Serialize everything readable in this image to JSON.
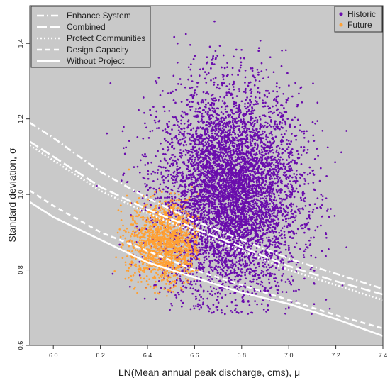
{
  "chart_data": {
    "type": "scatter",
    "xlabel": "LN(Mean annual peak discharge, cms), μ",
    "ylabel": "Standard deviation, σ",
    "xlim": [
      5.9,
      7.4
    ],
    "ylim": [
      0.6,
      1.5
    ],
    "x_ticks": [
      "6.0",
      "6.2",
      "6.4",
      "6.6",
      "6.8",
      "7.0",
      "7.2",
      "7.4"
    ],
    "y_ticks": [
      "0.6",
      "0.8",
      "1.0",
      "1.2",
      "1.4"
    ],
    "grid": false,
    "background": "#c9c9c9",
    "series": [
      {
        "name": "Historic",
        "kind": "points",
        "color": "#6a0dad",
        "n_points": 6000,
        "center": [
          6.75,
          1.0
        ],
        "spread": [
          0.15,
          0.14
        ],
        "x_range": [
          6.15,
          7.25
        ],
        "y_range": [
          0.68,
          1.46
        ]
      },
      {
        "name": "Future",
        "kind": "points",
        "color": "#ffa033",
        "n_points": 1300,
        "center": [
          6.47,
          0.87
        ],
        "spread": [
          0.075,
          0.055
        ],
        "x_range": [
          6.25,
          6.62
        ],
        "y_range": [
          0.73,
          1.07
        ]
      }
    ],
    "curves": [
      {
        "name": "Enhance System",
        "style": "dashdot",
        "x": [
          5.9,
          6.0,
          6.2,
          6.4,
          6.6,
          6.8,
          7.0,
          7.2,
          7.4
        ],
        "y": [
          1.19,
          1.15,
          1.06,
          0.99,
          0.93,
          0.88,
          0.83,
          0.79,
          0.75
        ]
      },
      {
        "name": "Combined",
        "style": "longdash",
        "x": [
          5.9,
          6.0,
          6.2,
          6.4,
          6.6,
          6.8,
          7.0,
          7.2,
          7.4
        ],
        "y": [
          1.14,
          1.1,
          1.02,
          0.96,
          0.91,
          0.86,
          0.81,
          0.77,
          0.735
        ]
      },
      {
        "name": "Protect Communities",
        "style": "dotted",
        "x": [
          5.9,
          6.0,
          6.2,
          6.4,
          6.6,
          6.8,
          7.0,
          7.2,
          7.4
        ],
        "y": [
          1.13,
          1.09,
          1.01,
          0.95,
          0.9,
          0.85,
          0.8,
          0.76,
          0.72
        ]
      },
      {
        "name": "Design Capacity",
        "style": "dashed",
        "x": [
          5.9,
          6.0,
          6.2,
          6.4,
          6.6,
          6.8,
          7.0,
          7.2,
          7.4
        ],
        "y": [
          1.01,
          0.97,
          0.9,
          0.85,
          0.8,
          0.76,
          0.72,
          0.68,
          0.645
        ]
      },
      {
        "name": "Without Project",
        "style": "solid",
        "x": [
          5.9,
          6.0,
          6.2,
          6.4,
          6.6,
          6.8,
          7.0,
          7.2,
          7.4
        ],
        "y": [
          0.98,
          0.94,
          0.88,
          0.82,
          0.78,
          0.74,
          0.71,
          0.67,
          0.625
        ]
      }
    ],
    "legends": [
      {
        "placement": "top-left",
        "entries": [
          "Enhance System",
          "Combined",
          "Protect Communities",
          "Design Capacity",
          "Without Project"
        ]
      },
      {
        "placement": "top-right",
        "entries": [
          "Historic",
          "Future"
        ]
      }
    ]
  }
}
